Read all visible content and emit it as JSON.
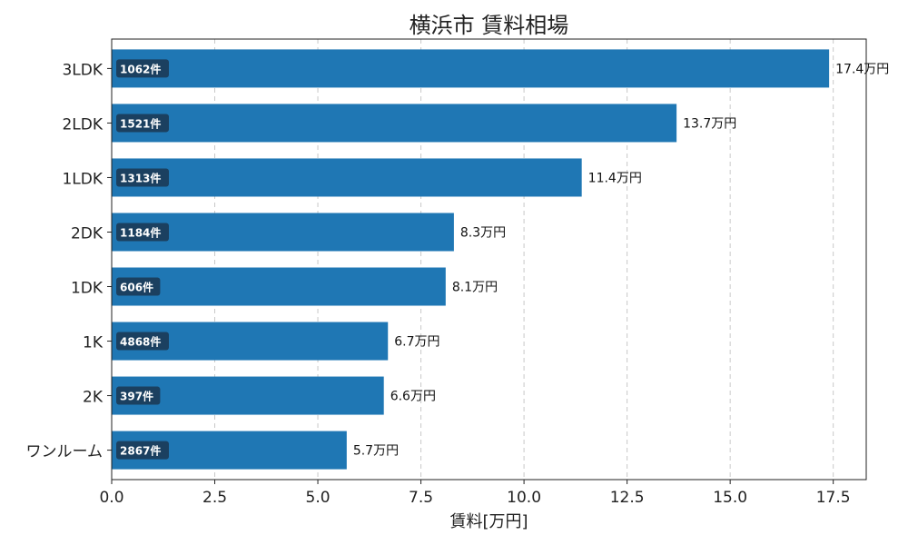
{
  "chart_data": {
    "type": "bar",
    "orientation": "horizontal",
    "title": "横浜市 賃料相場",
    "xlabel": "賃料[万円]",
    "ylabel": "",
    "xlim": [
      0,
      18.3
    ],
    "xticks": [
      "0.0",
      "2.5",
      "5.0",
      "7.5",
      "10.0",
      "12.5",
      "15.0",
      "17.5"
    ],
    "grid": "x-dashed",
    "bar_color": "#1f77b4",
    "count_badge_color": "#1b3a57",
    "categories": [
      "3LDK",
      "2LDK",
      "1LDK",
      "2DK",
      "1DK",
      "1K",
      "2K",
      "ワンルーム"
    ],
    "values": [
      17.4,
      13.7,
      11.4,
      8.3,
      8.1,
      6.7,
      6.6,
      5.7
    ],
    "value_labels": [
      "17.4万円",
      "13.7万円",
      "11.4万円",
      "8.3万円",
      "8.1万円",
      "6.7万円",
      "6.6万円",
      "5.7万円"
    ],
    "counts": [
      "1062件",
      "1521件",
      "1313件",
      "1184件",
      "606件",
      "4868件",
      "397件",
      "2867件"
    ]
  }
}
